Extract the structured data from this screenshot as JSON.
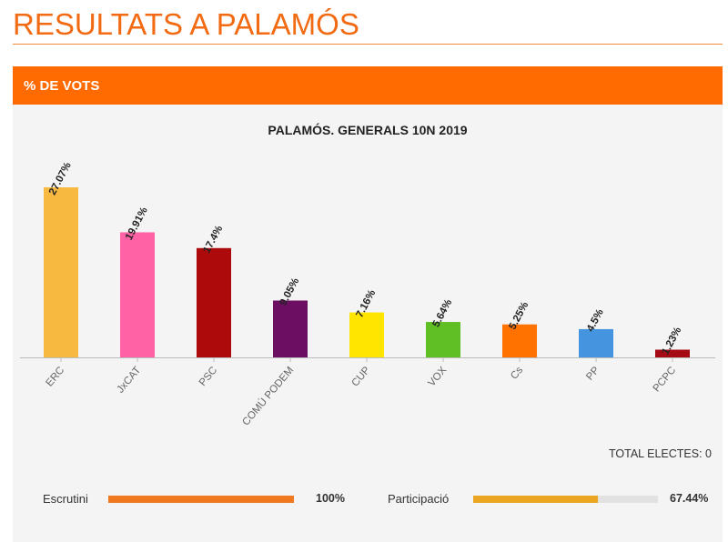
{
  "page": {
    "title": "RESULTATS A PALAMÓS",
    "section_label": "% DE VOTS"
  },
  "chart_data": {
    "type": "bar",
    "title": "PALAMÓS. GENERALS 10N 2019",
    "categories": [
      "ERC",
      "JxCAT",
      "PSC",
      "COMÚ PODEM",
      "CUP",
      "VOX",
      "Cs",
      "PP",
      "PCPC"
    ],
    "values": [
      27.07,
      19.91,
      17.4,
      9.05,
      7.16,
      5.64,
      5.25,
      4.5,
      1.23
    ],
    "value_labels": [
      "27.07%",
      "19.91%",
      "17.4%",
      "9.05%",
      "7.16%",
      "5.64%",
      "5.25%",
      "4.5%",
      "1.23%"
    ],
    "colors": [
      "#f7b940",
      "#ff62a5",
      "#ad0b0b",
      "#6c0f63",
      "#ffe500",
      "#5fbf24",
      "#ff7200",
      "#4594e0",
      "#a50a14"
    ],
    "xlabel": "",
    "ylabel": "",
    "ylim": [
      0,
      27.07
    ],
    "grid": false,
    "legend": "none"
  },
  "footer": {
    "total_electes": "TOTAL ELECTES: 0",
    "escrutini": {
      "label": "Escrutini",
      "value": "100%",
      "fraction": 1.0,
      "color": "#f0781e"
    },
    "participacio": {
      "label": "Participació",
      "value": "67.44%",
      "fraction": 0.6744,
      "color": "#eba520"
    }
  }
}
